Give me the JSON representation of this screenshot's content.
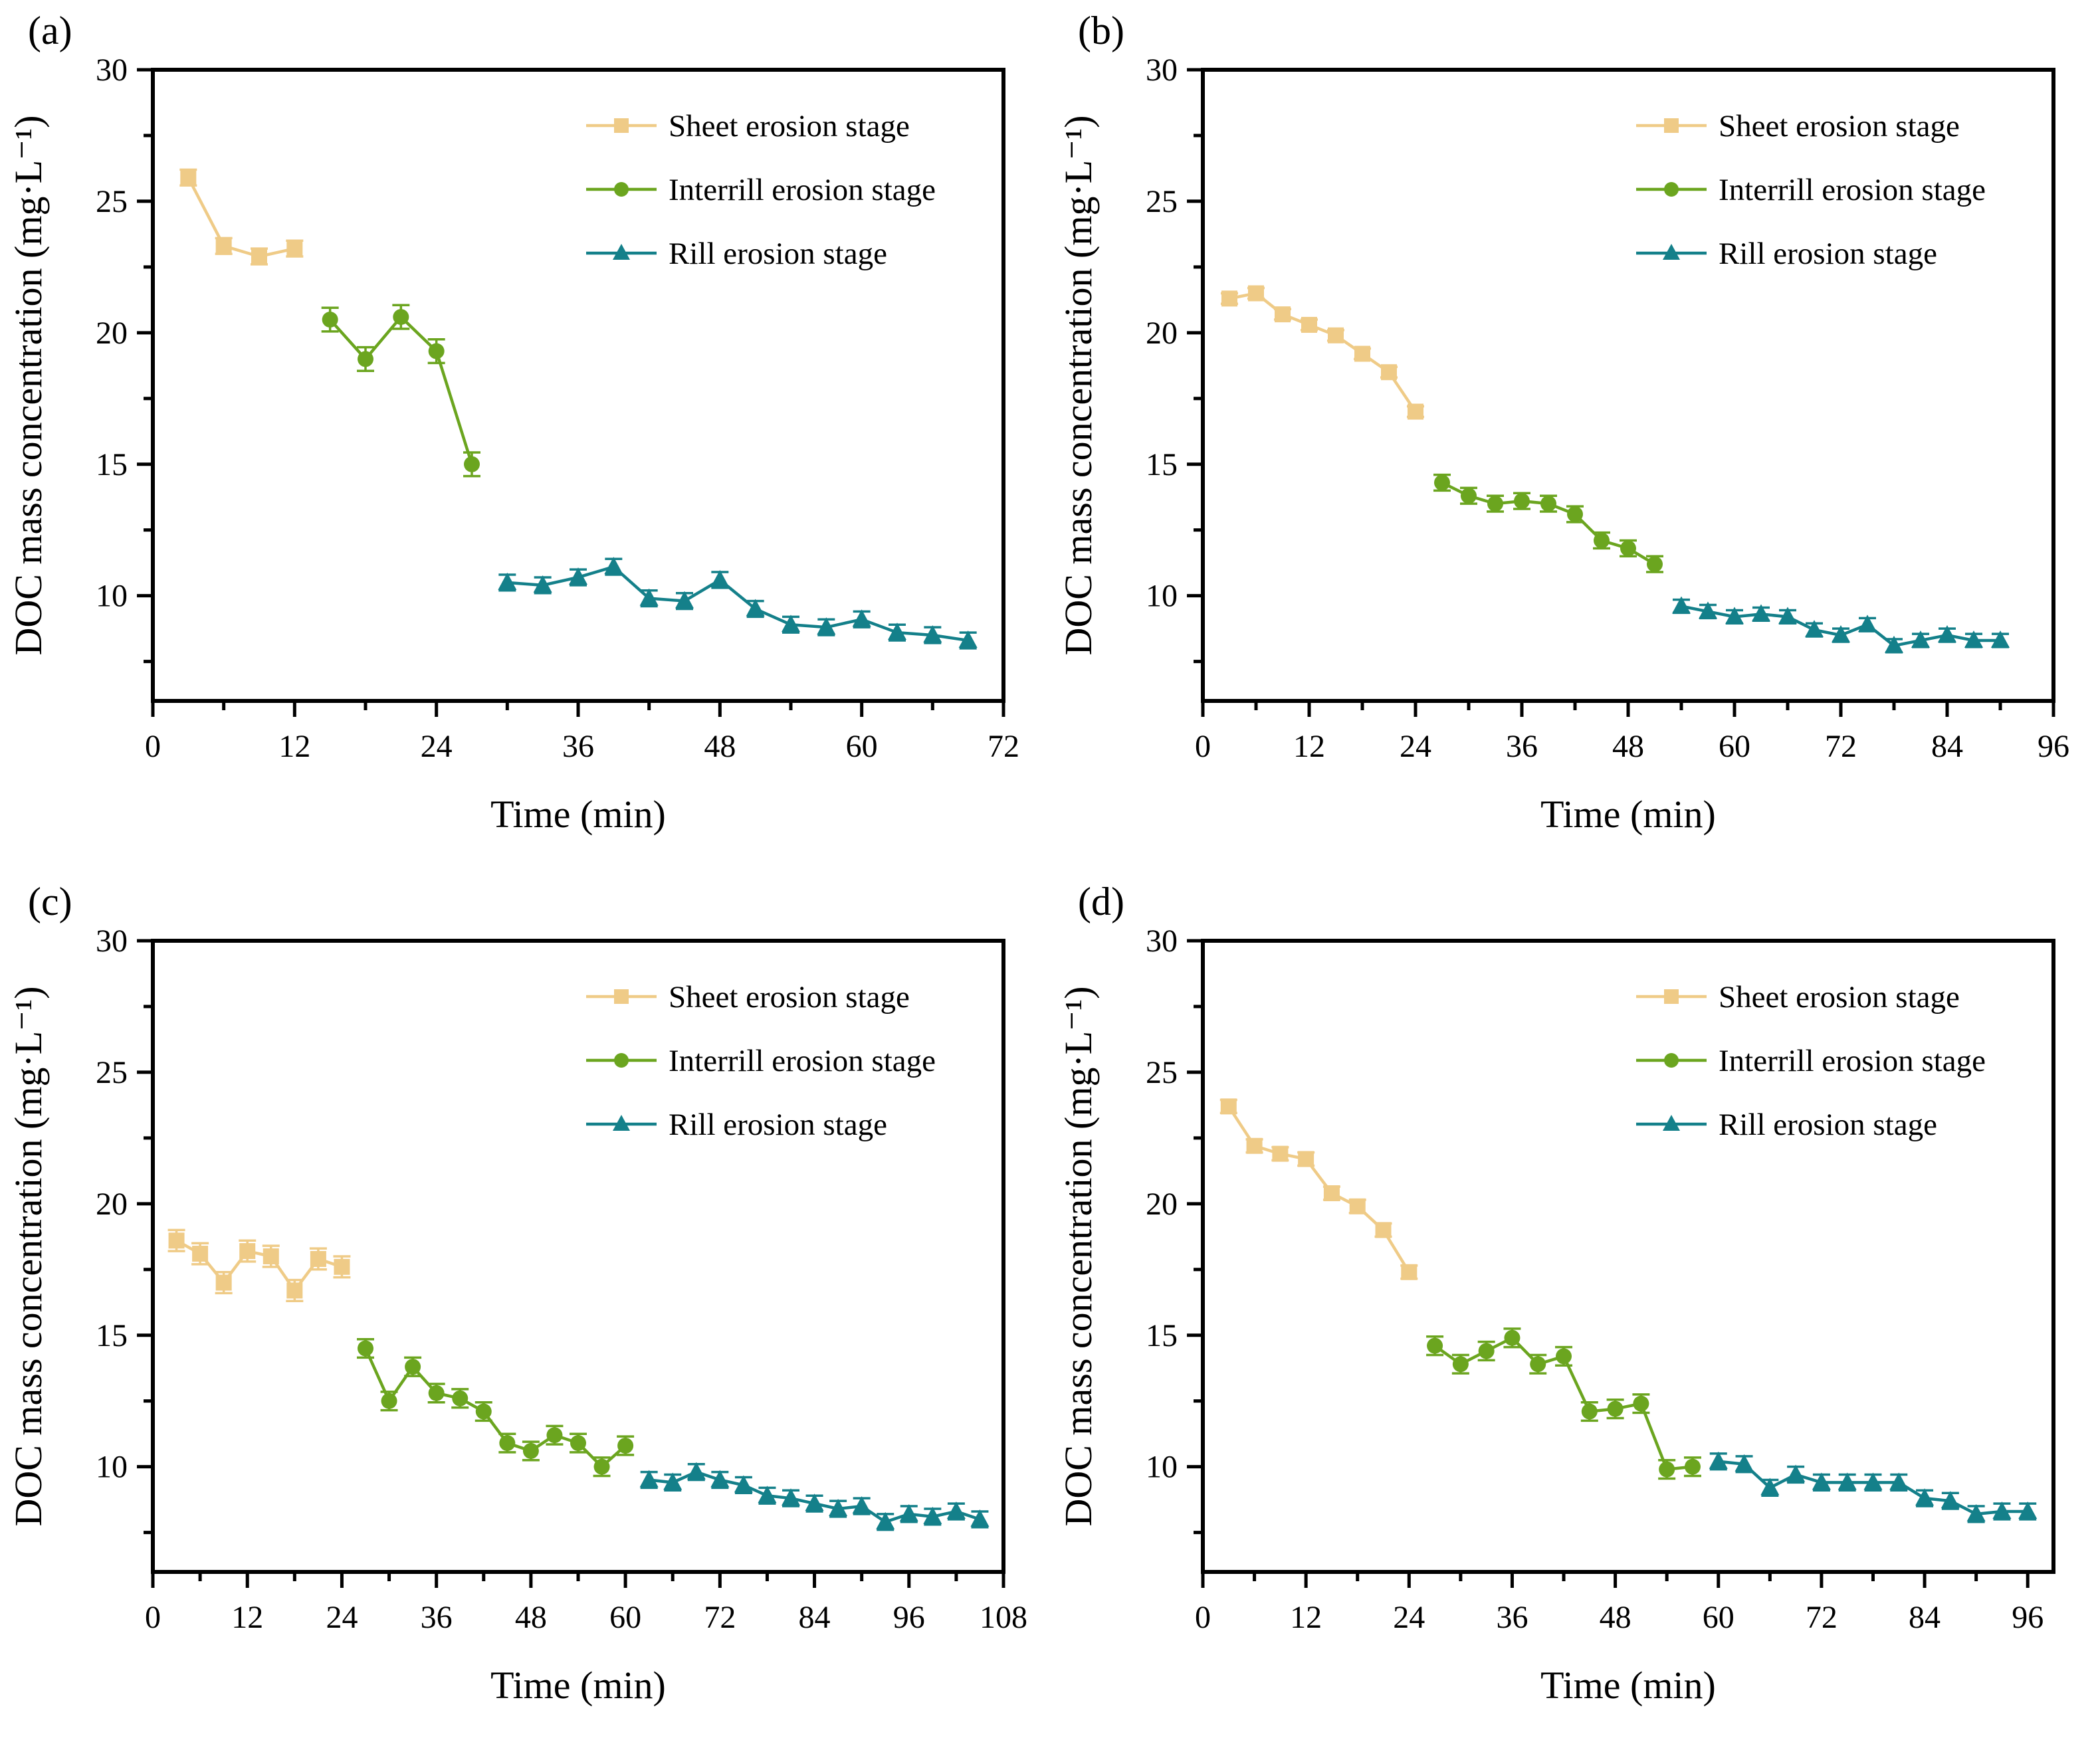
{
  "page": {
    "background": "#ffffff"
  },
  "colors": {
    "sheet": "#EFCB87",
    "interrill": "#6BA51F",
    "rill": "#14808A",
    "axis": "#000000"
  },
  "legend": {
    "items": [
      {
        "label": "Sheet erosion stage",
        "marker": "square",
        "color": "#EFCB87"
      },
      {
        "label": "Interrill erosion stage",
        "marker": "circle",
        "color": "#6BA51F"
      },
      {
        "label": "Rill erosion stage",
        "marker": "triangle",
        "color": "#14808A"
      }
    ],
    "position": "top-right-inside"
  },
  "chart_data": [
    {
      "id": "a",
      "label": "(a)",
      "type": "line",
      "xlabel": "Time (min)",
      "ylabel": "DOC mass concentration (mg·L⁻¹)",
      "xlim": [
        0,
        72
      ],
      "ylim": [
        6,
        30
      ],
      "grid": false,
      "x_ticks": [
        0,
        12,
        24,
        36,
        48,
        60,
        72
      ],
      "y_ticks": [
        10,
        15,
        20,
        25,
        30
      ],
      "series": [
        {
          "id": "sheet",
          "name": "Sheet erosion stage",
          "marker": "square",
          "color": "#EFCB87",
          "err": 0.3,
          "x": [
            3,
            6,
            9,
            12
          ],
          "y": [
            25.9,
            23.3,
            22.9,
            23.2
          ]
        },
        {
          "id": "interrill",
          "name": "Interrill erosion stage",
          "marker": "circle",
          "color": "#6BA51F",
          "err": 0.45,
          "x": [
            15,
            18,
            21,
            24,
            27
          ],
          "y": [
            20.5,
            19.0,
            20.6,
            19.3,
            15.0
          ]
        },
        {
          "id": "rill",
          "name": "Rill erosion stage",
          "marker": "triangle",
          "color": "#14808A",
          "err": 0.3,
          "x": [
            30,
            33,
            36,
            39,
            42,
            45,
            48,
            51,
            54,
            57,
            60,
            63,
            66,
            69
          ],
          "y": [
            10.5,
            10.4,
            10.7,
            11.1,
            9.9,
            9.8,
            10.6,
            9.5,
            8.9,
            8.8,
            9.1,
            8.6,
            8.5,
            8.3
          ]
        }
      ]
    },
    {
      "id": "b",
      "label": "(b)",
      "type": "line",
      "xlabel": "Time (min)",
      "ylabel": "DOC mass concentration (mg·L⁻¹)",
      "xlim": [
        0,
        96
      ],
      "ylim": [
        6,
        30
      ],
      "grid": false,
      "x_ticks": [
        0,
        12,
        24,
        36,
        48,
        60,
        72,
        84,
        96
      ],
      "y_ticks": [
        10,
        15,
        20,
        25,
        30
      ],
      "series": [
        {
          "id": "sheet",
          "name": "Sheet erosion stage",
          "marker": "square",
          "color": "#EFCB87",
          "err": 0.2,
          "x": [
            3,
            6,
            9,
            12,
            15,
            18,
            21,
            24
          ],
          "y": [
            21.3,
            21.5,
            20.7,
            20.3,
            19.9,
            19.2,
            18.5,
            17.0
          ]
        },
        {
          "id": "interrill",
          "name": "Interrill erosion stage",
          "marker": "circle",
          "color": "#6BA51F",
          "err": 0.3,
          "x": [
            27,
            30,
            33,
            36,
            39,
            42,
            45,
            48,
            51
          ],
          "y": [
            14.3,
            13.8,
            13.5,
            13.6,
            13.5,
            13.1,
            12.1,
            11.8,
            11.2
          ]
        },
        {
          "id": "rill",
          "name": "Rill erosion stage",
          "marker": "triangle",
          "color": "#14808A",
          "err": 0.25,
          "x": [
            54,
            57,
            60,
            63,
            66,
            69,
            72,
            75,
            78,
            81,
            84,
            87,
            90
          ],
          "y": [
            9.6,
            9.4,
            9.2,
            9.3,
            9.2,
            8.7,
            8.5,
            8.9,
            8.1,
            8.3,
            8.5,
            8.3,
            8.3
          ]
        }
      ]
    },
    {
      "id": "c",
      "label": "(c)",
      "type": "line",
      "xlabel": "Time (min)",
      "ylabel": "DOC mass concentration (mg·L⁻¹)",
      "xlim": [
        0,
        108
      ],
      "ylim": [
        6,
        30
      ],
      "grid": false,
      "x_ticks": [
        0,
        12,
        24,
        36,
        48,
        60,
        72,
        84,
        96,
        108
      ],
      "y_ticks": [
        10,
        15,
        20,
        25,
        30
      ],
      "series": [
        {
          "id": "sheet",
          "name": "Sheet erosion stage",
          "marker": "square",
          "color": "#EFCB87",
          "err": 0.4,
          "x": [
            3,
            6,
            9,
            12,
            15,
            18,
            21,
            24
          ],
          "y": [
            18.6,
            18.1,
            17.0,
            18.2,
            18.0,
            16.7,
            17.9,
            17.6
          ]
        },
        {
          "id": "interrill",
          "name": "Interrill erosion stage",
          "marker": "circle",
          "color": "#6BA51F",
          "err": 0.35,
          "x": [
            27,
            30,
            33,
            36,
            39,
            42,
            45,
            48,
            51,
            54,
            57,
            60
          ],
          "y": [
            14.5,
            12.5,
            13.8,
            12.8,
            12.6,
            12.1,
            10.9,
            10.6,
            11.2,
            10.9,
            10.0,
            10.8
          ]
        },
        {
          "id": "rill",
          "name": "Rill erosion stage",
          "marker": "triangle",
          "color": "#14808A",
          "err": 0.3,
          "x": [
            63,
            66,
            69,
            72,
            75,
            78,
            81,
            84,
            87,
            90,
            93,
            96,
            99,
            102,
            105
          ],
          "y": [
            9.5,
            9.4,
            9.8,
            9.5,
            9.3,
            8.9,
            8.8,
            8.6,
            8.4,
            8.5,
            7.9,
            8.2,
            8.1,
            8.3,
            8.0
          ]
        }
      ]
    },
    {
      "id": "d",
      "label": "(d)",
      "type": "line",
      "xlabel": "Time (min)",
      "ylabel": "DOC mass concentration (mg·L⁻¹)",
      "xlim": [
        0,
        99
      ],
      "ylim": [
        6,
        30
      ],
      "grid": false,
      "x_ticks": [
        0,
        12,
        24,
        36,
        48,
        60,
        72,
        84,
        96
      ],
      "y_ticks": [
        10,
        15,
        20,
        25,
        30
      ],
      "series": [
        {
          "id": "sheet",
          "name": "Sheet erosion stage",
          "marker": "square",
          "color": "#EFCB87",
          "err": 0.25,
          "x": [
            3,
            6,
            9,
            12,
            15,
            18,
            21,
            24
          ],
          "y": [
            23.7,
            22.2,
            21.9,
            21.7,
            20.4,
            19.9,
            19.0,
            17.4
          ]
        },
        {
          "id": "interrill",
          "name": "Interrill erosion stage",
          "marker": "circle",
          "color": "#6BA51F",
          "err": 0.35,
          "x": [
            27,
            30,
            33,
            36,
            39,
            42,
            45,
            48,
            51,
            54,
            57
          ],
          "y": [
            14.6,
            13.9,
            14.4,
            14.9,
            13.9,
            14.2,
            12.1,
            12.2,
            12.4,
            9.9,
            10.0
          ]
        },
        {
          "id": "rill",
          "name": "Rill erosion stage",
          "marker": "triangle",
          "color": "#14808A",
          "err": 0.3,
          "x": [
            60,
            63,
            66,
            69,
            72,
            75,
            78,
            81,
            84,
            87,
            90,
            93,
            96
          ],
          "y": [
            10.2,
            10.1,
            9.2,
            9.7,
            9.4,
            9.4,
            9.4,
            9.4,
            8.8,
            8.7,
            8.2,
            8.3,
            8.3
          ]
        }
      ]
    }
  ]
}
